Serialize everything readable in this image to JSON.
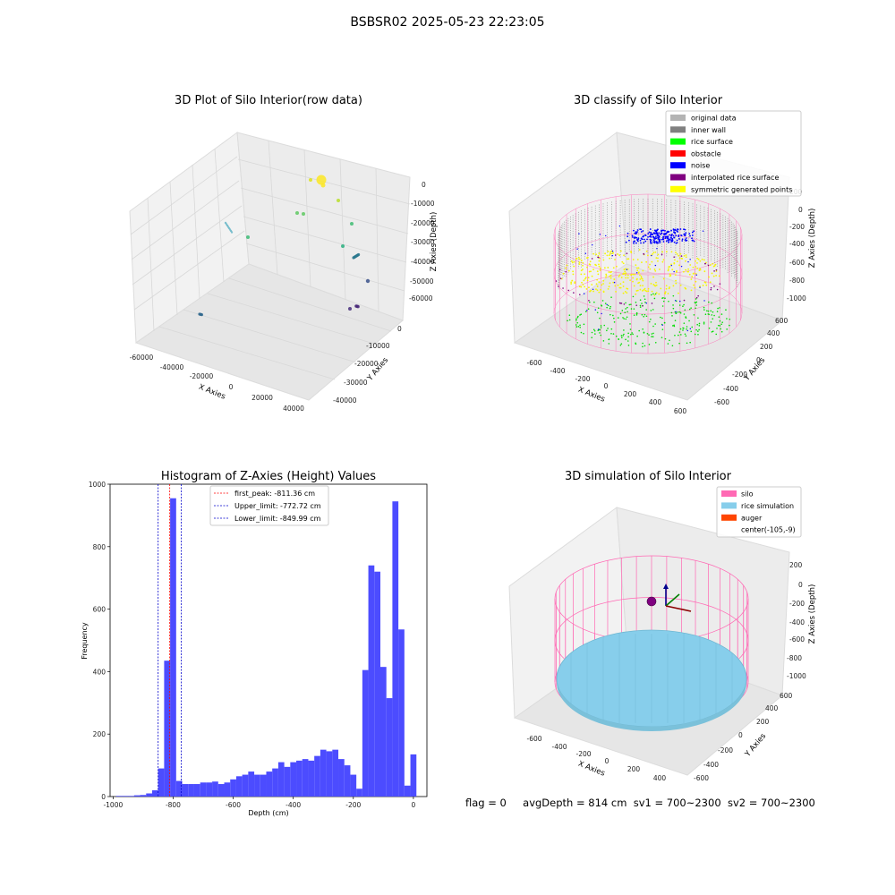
{
  "figure_title": "BSBSR02 2025-05-23 22:23:05",
  "footer": {
    "flag": "flag = 0",
    "avg_depth": "avgDepth = 814 cm",
    "sv1": "sv1 = 700~2300",
    "sv2": "sv2 = 700~2300"
  },
  "colors": {
    "histogram_bar": "#4c4cff",
    "first_peak_line": "#ff0000",
    "limit_lines": "#0000cc",
    "silo_wire": "#ff69b4",
    "rice_sim": "#87ceeb",
    "pane_gray": "#f2f2f2"
  },
  "chart_data": [
    {
      "type": "scatter",
      "title": "3D Plot of Silo Interior(row data)",
      "xlabel": "X Axies",
      "ylabel": "Y Axies",
      "zlabel": "Z Axies (Depth)",
      "xticks": [
        "-60000",
        "-40000",
        "-20000",
        "0",
        "20000",
        "40000"
      ],
      "yticks": [
        "-40000",
        "-30000",
        "-20000",
        "-10000",
        "0"
      ],
      "zticks": [
        "0",
        "-10000",
        "-20000",
        "-30000",
        "-40000",
        "-50000",
        "-60000"
      ],
      "xlim": [
        -65000,
        45000
      ],
      "ylim": [
        -45000,
        5000
      ],
      "zlim": [
        -65000,
        3000
      ],
      "colormap": "viridis by depth",
      "points_note": "scattered clusters; largest cluster near depth 0"
    },
    {
      "type": "scatter",
      "title": "3D classify of Silo Interior",
      "xlabel": "X Axies",
      "ylabel": "Y Axies",
      "zlabel": "Z Axies (Depth)",
      "xticks": [
        "-600",
        "-400",
        "-200",
        "0",
        "200",
        "400",
        "600"
      ],
      "yticks": [
        "-600",
        "-400",
        "-200",
        "0",
        "200",
        "400",
        "600"
      ],
      "zticks": [
        "200",
        "0",
        "-200",
        "-400",
        "-600",
        "-800",
        "-1000"
      ],
      "legend_position": "top-right",
      "legend": [
        {
          "label": "original data",
          "color": "#b3b3b3"
        },
        {
          "label": "inner wall",
          "color": "#808080"
        },
        {
          "label": "rice surface",
          "color": "#00ff00"
        },
        {
          "label": "obstacle",
          "color": "#ff0000"
        },
        {
          "label": "noise",
          "color": "#0000ff"
        },
        {
          "label": "interpolated rice surface",
          "color": "#800080"
        },
        {
          "label": "symmetric generated points",
          "color": "#ffff00"
        }
      ]
    },
    {
      "type": "bar",
      "title": "Histogram of Z-Axies (Height) Values",
      "xlabel": "Depth (cm)",
      "ylabel": "Frequency",
      "xlim": [
        -1010,
        45
      ],
      "ylim": [
        0,
        1000
      ],
      "xticks": [
        -1000,
        -800,
        -600,
        -400,
        -200,
        0
      ],
      "yticks": [
        0,
        200,
        400,
        600,
        800,
        1000
      ],
      "bin_start": -990,
      "bin_width": 20,
      "values": [
        2,
        2,
        2,
        4,
        5,
        10,
        20,
        90,
        435,
        955,
        50,
        40,
        40,
        40,
        45,
        45,
        48,
        40,
        45,
        55,
        65,
        70,
        80,
        70,
        70,
        80,
        90,
        110,
        95,
        110,
        115,
        120,
        115,
        130,
        150,
        145,
        150,
        120,
        100,
        70,
        25,
        405,
        740,
        720,
        415,
        315,
        945,
        535,
        35,
        135
      ],
      "vlines": [
        {
          "x": -811.36,
          "label": "first_peak: -811.36 cm",
          "color": "#ff0000"
        },
        {
          "x": -772.72,
          "label": "Upper_limit: -772.72 cm",
          "color": "#0000cc"
        },
        {
          "x": -849.99,
          "label": "Lower_limit: -849.99 cm",
          "color": "#0000cc"
        }
      ],
      "legend_position": "top-center"
    },
    {
      "type": "surface",
      "title": "3D simulation of Silo Interior",
      "xlabel": "X Axies",
      "ylabel": "Y Axies",
      "zlabel": "Z Axies (Depth)",
      "xticks": [
        "-600",
        "-400",
        "-200",
        "0",
        "200",
        "400"
      ],
      "yticks": [
        "-600",
        "-400",
        "-200",
        "0",
        "200",
        "400",
        "600"
      ],
      "zticks": [
        "200",
        "0",
        "-200",
        "-400",
        "-600",
        "-800",
        "-1000"
      ],
      "legend_position": "top-right",
      "legend": [
        {
          "label": "silo",
          "color": "#ff69b4"
        },
        {
          "label": "rice simulation",
          "color": "#87ceeb"
        },
        {
          "label": "auger",
          "color": "#ff4500"
        },
        {
          "label": "center(-105,-9)",
          "color": ""
        }
      ]
    }
  ]
}
